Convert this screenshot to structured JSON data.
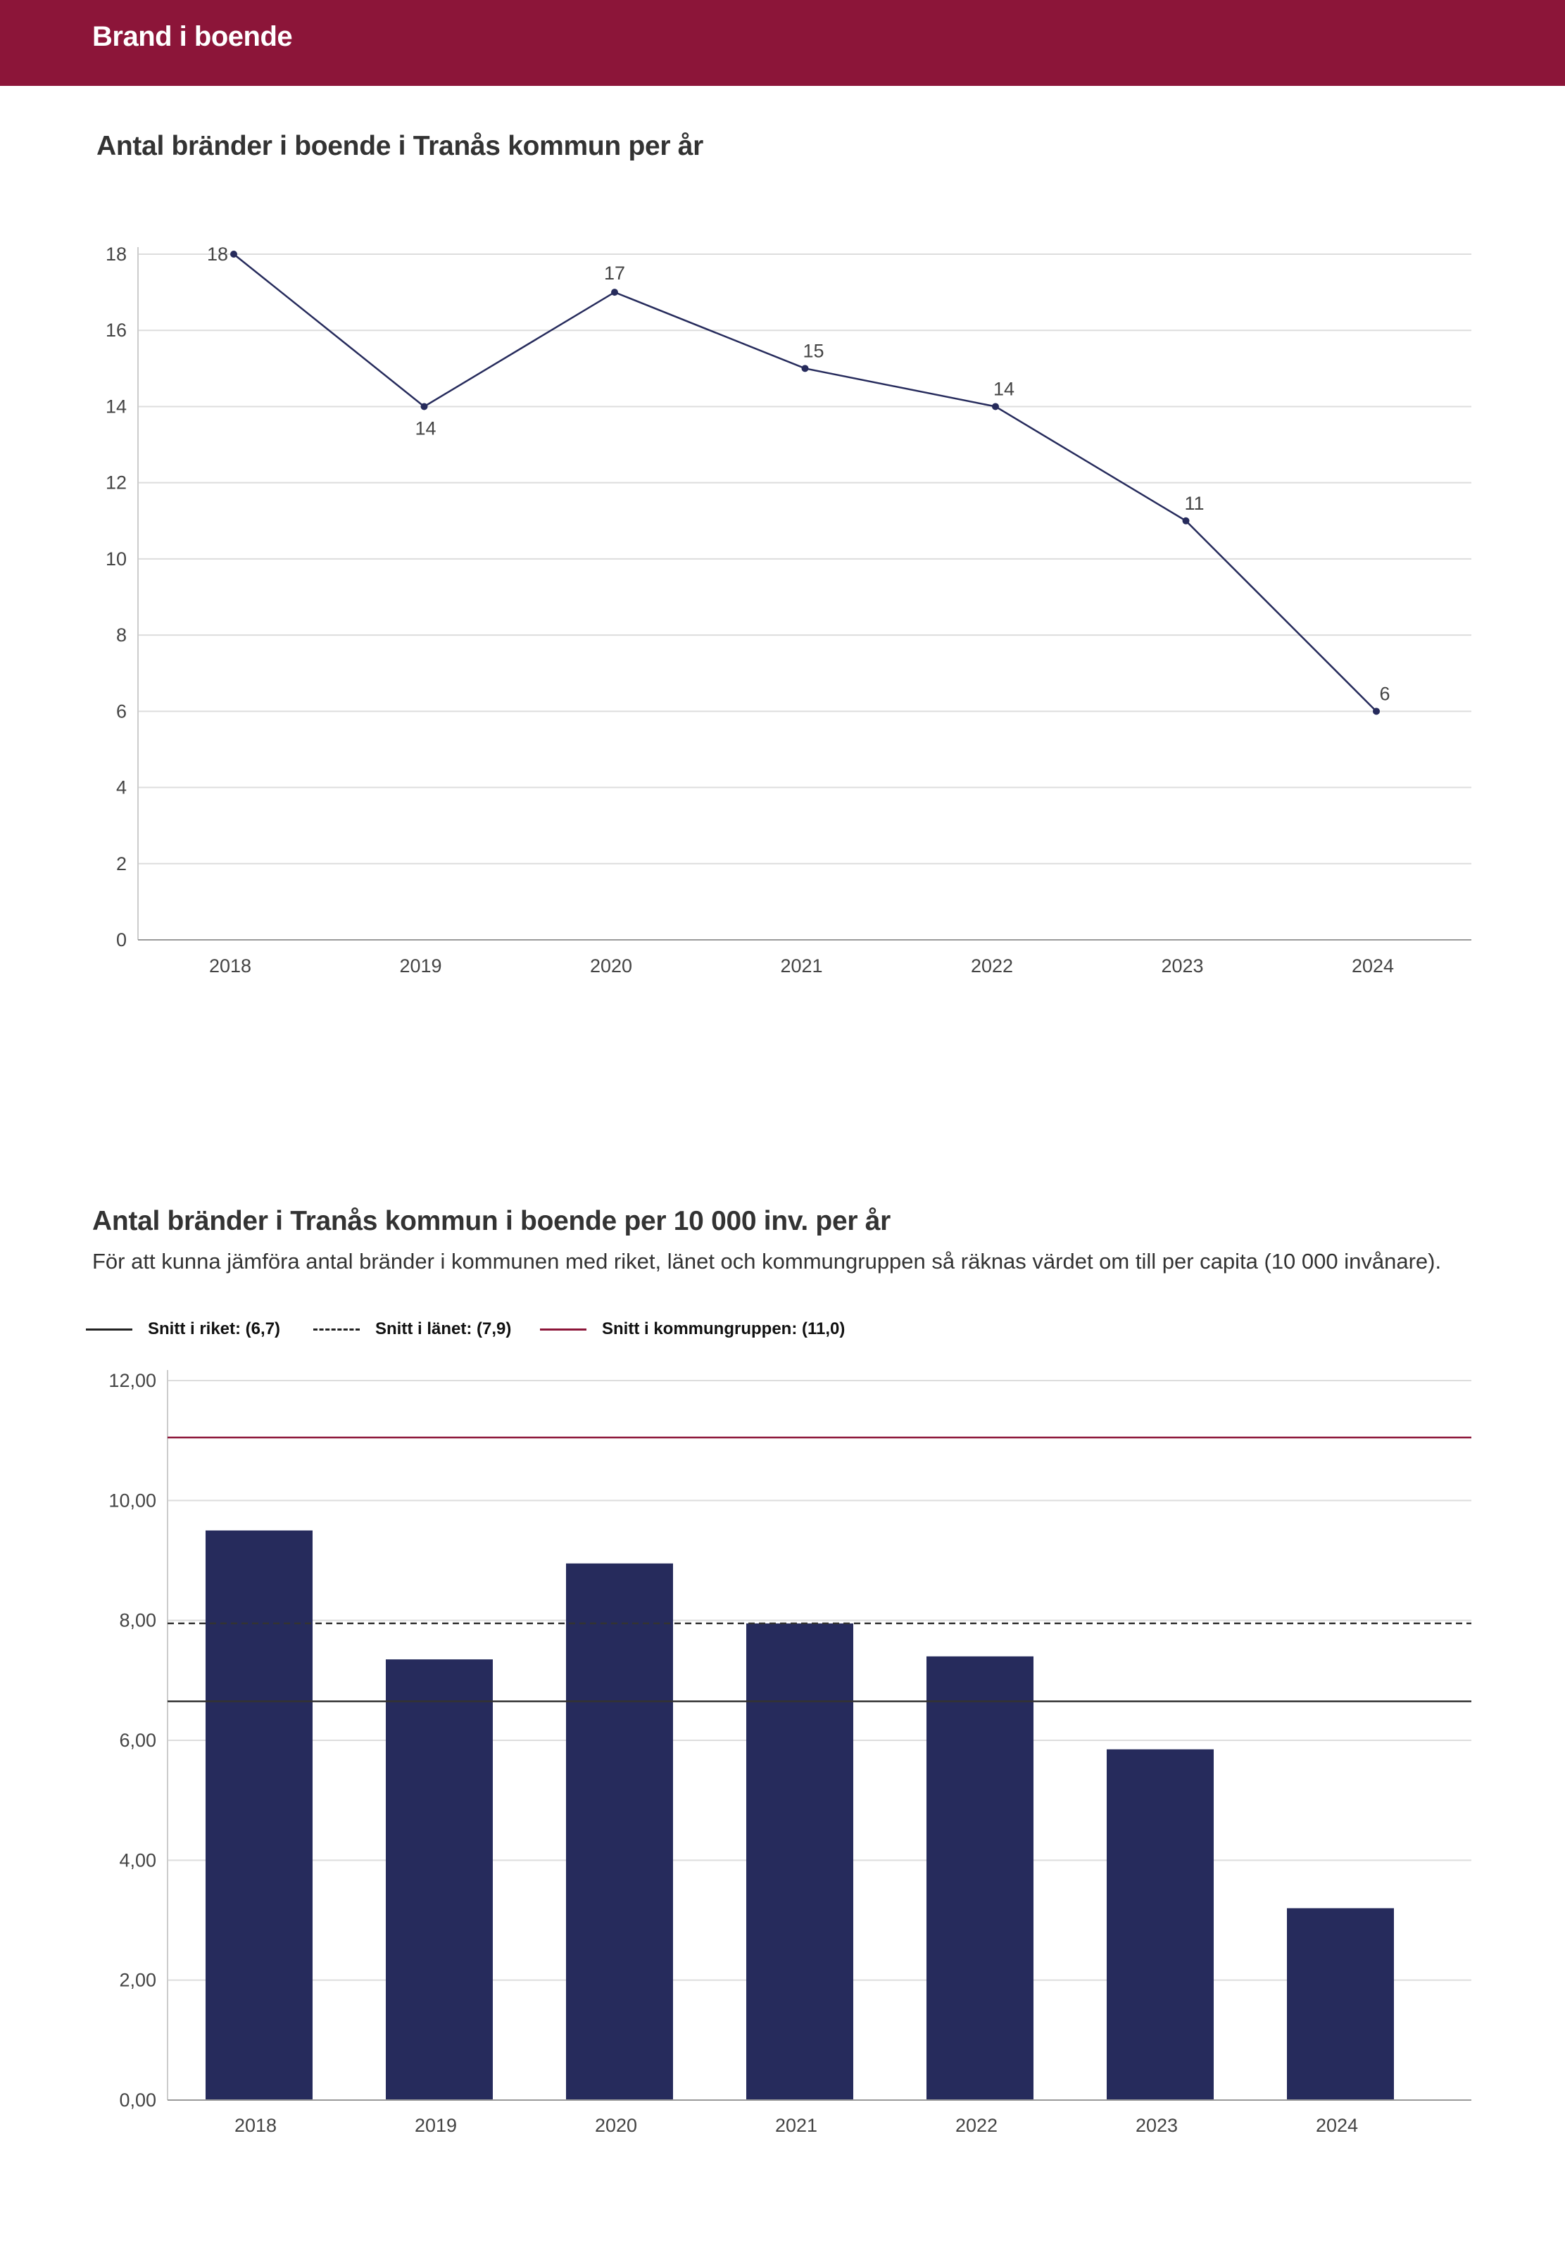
{
  "header": {
    "title": "Brand i boende"
  },
  "colors": {
    "header": "#8c1539",
    "series": "#262b5c",
    "grid": "#dddddd",
    "kommungrupp": "#8c1539",
    "riket": "#333333",
    "lanet": "#333333"
  },
  "chart_data": [
    {
      "type": "line",
      "title": "Antal bränder i boende i Tranås kommun per år",
      "categories": [
        "2018",
        "2019",
        "2020",
        "2021",
        "2022",
        "2023",
        "2024"
      ],
      "values": [
        18,
        14,
        17,
        15,
        14,
        11,
        6
      ],
      "value_labels": [
        "18",
        "14",
        "17",
        "15",
        "14",
        "11",
        "6"
      ],
      "y_ticks": [
        "0",
        "2",
        "4",
        "6",
        "8",
        "10",
        "12",
        "14",
        "16",
        "18"
      ],
      "ylim": [
        0,
        18
      ],
      "xlabel": "",
      "ylabel": "",
      "grid": true
    },
    {
      "type": "bar",
      "title": "Antal bränder i Tranås kommun i boende per 10 000 inv. per år",
      "subtitle": "För att kunna jämföra antal bränder i kommunen med riket, länet och kommungruppen så räknas värdet om till per capita (10 000 invånare).",
      "categories": [
        "2018",
        "2019",
        "2020",
        "2021",
        "2022",
        "2023",
        "2024"
      ],
      "values": [
        9.5,
        7.35,
        8.95,
        7.95,
        7.4,
        5.85,
        3.2
      ],
      "y_ticks": [
        "0,00",
        "2,00",
        "4,00",
        "6,00",
        "8,00",
        "10,00",
        "12,00"
      ],
      "ylim": [
        0,
        12
      ],
      "grid": true,
      "reference_lines": [
        {
          "name": "Snitt i riket: (6,7)",
          "value": 6.65,
          "style": "solid"
        },
        {
          "name": "Snitt i länet: (7,9)",
          "value": 7.95,
          "style": "dashed"
        },
        {
          "name": "Snitt i kommungruppen: (11,0)",
          "value": 11.05,
          "style": "solid-red"
        }
      ],
      "legend_position": "top-left"
    }
  ]
}
